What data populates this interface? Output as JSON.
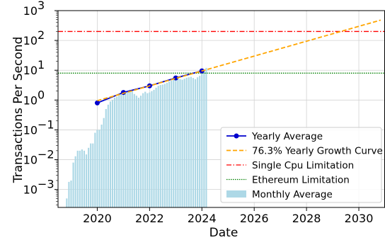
{
  "chart_data": {
    "type": "line",
    "title": "",
    "xlabel": "Date",
    "ylabel": "Transactions Per Second",
    "xscale": "time",
    "yscale": "log",
    "xlim": [
      "2018-07-01",
      "2031-01-01"
    ],
    "ylim": [
      0.00025,
      1000
    ],
    "grid": true,
    "legend_position": "lower-right",
    "x_ticks": [
      "2020",
      "2022",
      "2024",
      "2026",
      "2028",
      "2030"
    ],
    "y_ticks": [
      {
        "value": 0.001,
        "base": "10",
        "exp": "−3"
      },
      {
        "value": 0.01,
        "base": "10",
        "exp": "−2"
      },
      {
        "value": 0.1,
        "base": "10",
        "exp": "−1"
      },
      {
        "value": 1,
        "base": "10",
        "exp": "0"
      },
      {
        "value": 10,
        "base": "10",
        "exp": "1"
      },
      {
        "value": 100,
        "base": "10",
        "exp": "2"
      },
      {
        "value": 1000,
        "base": "10",
        "exp": "3"
      }
    ],
    "series": [
      {
        "name": "Monthly Average",
        "kind": "bar",
        "color": "#add8e6",
        "x": [
          "2018-11",
          "2018-12",
          "2019-01",
          "2019-02",
          "2019-03",
          "2019-04",
          "2019-05",
          "2019-06",
          "2019-07",
          "2019-08",
          "2019-09",
          "2019-10",
          "2019-11",
          "2019-12",
          "2020-01",
          "2020-02",
          "2020-03",
          "2020-04",
          "2020-05",
          "2020-06",
          "2020-07",
          "2020-08",
          "2020-09",
          "2020-10",
          "2020-11",
          "2020-12",
          "2021-01",
          "2021-02",
          "2021-03",
          "2021-04",
          "2021-05",
          "2021-06",
          "2021-07",
          "2021-08",
          "2021-09",
          "2021-10",
          "2021-11",
          "2021-12",
          "2022-01",
          "2022-02",
          "2022-03",
          "2022-04",
          "2022-05",
          "2022-06",
          "2022-07",
          "2022-08",
          "2022-09",
          "2022-10",
          "2022-11",
          "2022-12",
          "2023-01",
          "2023-02",
          "2023-03",
          "2023-04",
          "2023-05",
          "2023-06",
          "2023-07",
          "2023-08",
          "2023-09",
          "2023-10",
          "2023-11",
          "2023-12",
          "2024-01",
          "2024-02",
          "2024-03"
        ],
        "values": [
          0.0005,
          0.0018,
          0.002,
          0.008,
          0.013,
          0.02,
          0.02,
          0.022,
          0.02,
          0.015,
          0.025,
          0.035,
          0.035,
          0.08,
          0.1,
          0.1,
          0.15,
          0.25,
          0.5,
          0.7,
          0.9,
          1.0,
          1.2,
          1.3,
          1.5,
          1.6,
          1.8,
          1.9,
          2.0,
          2.2,
          2.1,
          1.6,
          1.4,
          1.2,
          1.4,
          1.7,
          1.9,
          1.7,
          1.8,
          2.0,
          2.2,
          2.6,
          3.0,
          3.2,
          3.3,
          3.5,
          3.8,
          4.2,
          4.5,
          5.0,
          5.2,
          5.5,
          5.0,
          4.8,
          5.2,
          5.6,
          5.8,
          6.0,
          5.5,
          5.0,
          5.8,
          6.5,
          8.0,
          10.0,
          12.0
        ]
      },
      {
        "name": "Yearly Average",
        "kind": "line",
        "color": "#0000cd",
        "x": [
          "2020-01-01",
          "2021-01-01",
          "2022-01-01",
          "2023-01-01",
          "2024-01-01"
        ],
        "values": [
          0.8,
          1.8,
          3.0,
          5.5,
          9.5
        ]
      },
      {
        "name": "76.3% Yearly Growth Curve",
        "kind": "line",
        "color": "#ffa500",
        "x": [
          "2020-01-01",
          "2030-11-01"
        ],
        "values": [
          0.95,
          480
        ]
      },
      {
        "name": "Single Cpu Limitation",
        "kind": "hline",
        "color": "#ff0000",
        "values": [
          200
        ]
      },
      {
        "name": "Ethereum Limitation",
        "kind": "hline",
        "color": "#008000",
        "values": [
          8
        ]
      }
    ]
  }
}
